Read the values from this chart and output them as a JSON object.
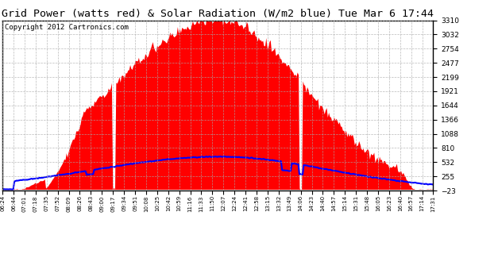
{
  "title": "Grid Power (watts red) & Solar Radiation (W/m2 blue) Tue Mar 6 17:44",
  "copyright": "Copyright 2012 Cartronics.com",
  "y_ticks": [
    3309.9,
    3032.2,
    2754.4,
    2476.7,
    2198.9,
    1921.2,
    1643.5,
    1365.7,
    1088.0,
    810.2,
    532.5,
    254.7,
    -23.0
  ],
  "x_labels": [
    "06:24",
    "06:44",
    "07:01",
    "07:18",
    "07:35",
    "07:52",
    "08:09",
    "08:26",
    "08:43",
    "09:00",
    "09:17",
    "09:34",
    "09:51",
    "10:08",
    "10:25",
    "10:42",
    "10:59",
    "11:16",
    "11:33",
    "11:50",
    "12:07",
    "12:24",
    "12:41",
    "12:58",
    "13:15",
    "13:32",
    "13:49",
    "14:06",
    "14:23",
    "14:40",
    "14:57",
    "15:14",
    "15:31",
    "15:48",
    "16:05",
    "16:23",
    "16:40",
    "16:57",
    "17:14",
    "17:31"
  ],
  "ymin": -23.0,
  "ymax": 3309.9,
  "red_color": "#FF0000",
  "blue_color": "#0000FF",
  "grid_color": "#AAAAAA",
  "bg_color": "#FFFFFF",
  "title_fontsize": 9.5,
  "copyright_fontsize": 6.5
}
